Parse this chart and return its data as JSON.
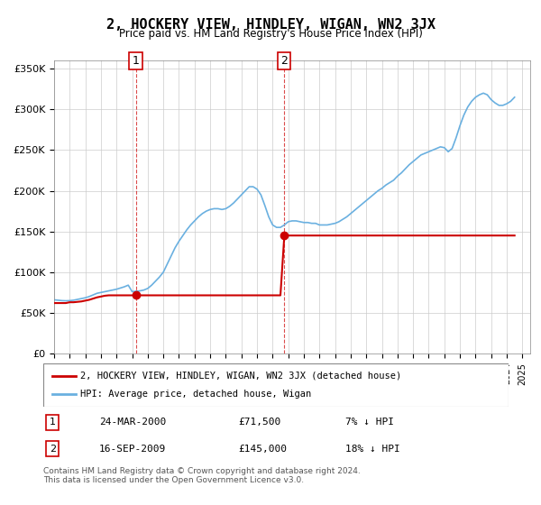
{
  "title": "2, HOCKERY VIEW, HINDLEY, WIGAN, WN2 3JX",
  "subtitle": "Price paid vs. HM Land Registry's House Price Index (HPI)",
  "ylabel_ticks": [
    "£0",
    "£50K",
    "£100K",
    "£150K",
    "£200K",
    "£250K",
    "£300K",
    "£350K"
  ],
  "ytick_vals": [
    0,
    50000,
    100000,
    150000,
    200000,
    250000,
    300000,
    350000
  ],
  "ylim": [
    0,
    360000
  ],
  "xlim_start": 1995.0,
  "xlim_end": 2025.5,
  "hpi_color": "#6ab0e0",
  "price_color": "#cc0000",
  "marker_color": "#cc0000",
  "transaction1": {
    "date": 2000.23,
    "price": 71500,
    "label": "1"
  },
  "transaction2": {
    "date": 2009.71,
    "price": 145000,
    "label": "2"
  },
  "legend_line1": "2, HOCKERY VIEW, HINDLEY, WIGAN, WN2 3JX (detached house)",
  "legend_line2": "HPI: Average price, detached house, Wigan",
  "table_row1": {
    "num": "1",
    "date": "24-MAR-2000",
    "price": "£71,500",
    "pct": "7% ↓ HPI"
  },
  "table_row2": {
    "num": "2",
    "date": "16-SEP-2009",
    "price": "£145,000",
    "pct": "18% ↓ HPI"
  },
  "footer": "Contains HM Land Registry data © Crown copyright and database right 2024.\nThis data is licensed under the Open Government Licence v3.0.",
  "hpi_data": {
    "years": [
      1995.0,
      1995.25,
      1995.5,
      1995.75,
      1996.0,
      1996.25,
      1996.5,
      1996.75,
      1997.0,
      1997.25,
      1997.5,
      1997.75,
      1998.0,
      1998.25,
      1998.5,
      1998.75,
      1999.0,
      1999.25,
      1999.5,
      1999.75,
      2000.0,
      2000.25,
      2000.5,
      2000.75,
      2001.0,
      2001.25,
      2001.5,
      2001.75,
      2002.0,
      2002.25,
      2002.5,
      2002.75,
      2003.0,
      2003.25,
      2003.5,
      2003.75,
      2004.0,
      2004.25,
      2004.5,
      2004.75,
      2005.0,
      2005.25,
      2005.5,
      2005.75,
      2006.0,
      2006.25,
      2006.5,
      2006.75,
      2007.0,
      2007.25,
      2007.5,
      2007.75,
      2008.0,
      2008.25,
      2008.5,
      2008.75,
      2009.0,
      2009.25,
      2009.5,
      2009.75,
      2010.0,
      2010.25,
      2010.5,
      2010.75,
      2011.0,
      2011.25,
      2011.5,
      2011.75,
      2012.0,
      2012.25,
      2012.5,
      2012.75,
      2013.0,
      2013.25,
      2013.5,
      2013.75,
      2014.0,
      2014.25,
      2014.5,
      2014.75,
      2015.0,
      2015.25,
      2015.5,
      2015.75,
      2016.0,
      2016.25,
      2016.5,
      2016.75,
      2017.0,
      2017.25,
      2017.5,
      2017.75,
      2018.0,
      2018.25,
      2018.5,
      2018.75,
      2019.0,
      2019.25,
      2019.5,
      2019.75,
      2020.0,
      2020.25,
      2020.5,
      2020.75,
      2021.0,
      2021.25,
      2021.5,
      2021.75,
      2022.0,
      2022.25,
      2022.5,
      2022.75,
      2023.0,
      2023.25,
      2023.5,
      2023.75,
      2024.0,
      2024.25,
      2024.5
    ],
    "values": [
      66000,
      65500,
      65000,
      64800,
      65000,
      65500,
      66500,
      67500,
      68500,
      70000,
      72000,
      74000,
      75000,
      76000,
      77000,
      78000,
      79000,
      80500,
      82000,
      84000,
      76000,
      76500,
      77000,
      78000,
      80000,
      84000,
      89000,
      94000,
      100000,
      110000,
      120000,
      130000,
      138000,
      145000,
      152000,
      158000,
      163000,
      168000,
      172000,
      175000,
      177000,
      178000,
      178000,
      177000,
      178000,
      181000,
      185000,
      190000,
      195000,
      200000,
      205000,
      205000,
      202000,
      195000,
      182000,
      168000,
      158000,
      155000,
      155000,
      158000,
      162000,
      163000,
      163000,
      162000,
      161000,
      161000,
      160000,
      160000,
      158000,
      158000,
      158000,
      159000,
      160000,
      162000,
      165000,
      168000,
      172000,
      176000,
      180000,
      184000,
      188000,
      192000,
      196000,
      200000,
      203000,
      207000,
      210000,
      213000,
      218000,
      222000,
      227000,
      232000,
      236000,
      240000,
      244000,
      246000,
      248000,
      250000,
      252000,
      254000,
      253000,
      248000,
      252000,
      265000,
      280000,
      293000,
      303000,
      310000,
      315000,
      318000,
      320000,
      318000,
      312000,
      308000,
      305000,
      305000,
      307000,
      310000,
      315000
    ]
  },
  "price_data": {
    "years": [
      1995.0,
      1995.25,
      1995.5,
      1995.75,
      1996.0,
      1996.25,
      1996.5,
      1996.75,
      1997.0,
      1997.25,
      1997.5,
      1997.75,
      1998.0,
      1998.25,
      1998.5,
      1998.75,
      1999.0,
      1999.25,
      1999.5,
      1999.75,
      2000.0,
      2000.25,
      2000.5,
      2000.75,
      2001.0,
      2001.25,
      2001.5,
      2001.75,
      2002.0,
      2002.25,
      2002.5,
      2002.75,
      2003.0,
      2003.25,
      2003.5,
      2003.75,
      2004.0,
      2004.25,
      2004.5,
      2004.75,
      2005.0,
      2005.25,
      2005.5,
      2005.75,
      2006.0,
      2006.25,
      2006.5,
      2006.75,
      2007.0,
      2007.25,
      2007.5,
      2007.75,
      2008.0,
      2008.25,
      2008.5,
      2008.75,
      2009.0,
      2009.25,
      2009.5,
      2009.75,
      2010.0,
      2010.25,
      2010.5,
      2010.75,
      2011.0,
      2011.25,
      2011.5,
      2011.75,
      2012.0,
      2012.25,
      2012.5,
      2012.75,
      2013.0,
      2013.25,
      2013.5,
      2013.75,
      2014.0,
      2014.25,
      2014.5,
      2014.75,
      2015.0,
      2015.25,
      2015.5,
      2015.75,
      2016.0,
      2016.25,
      2016.5,
      2016.75,
      2017.0,
      2017.25,
      2017.5,
      2017.75,
      2018.0,
      2018.25,
      2018.5,
      2018.75,
      2019.0,
      2019.25,
      2019.5,
      2019.75,
      2020.0,
      2020.25,
      2020.5,
      2020.75,
      2021.0,
      2021.25,
      2021.5,
      2021.75,
      2022.0,
      2022.25,
      2022.5,
      2022.75,
      2023.0,
      2023.25,
      2023.5,
      2023.75,
      2024.0,
      2024.25,
      2024.5
    ],
    "values": [
      62000,
      62000,
      62000,
      62000,
      63000,
      63000,
      63500,
      64000,
      65000,
      66000,
      67500,
      69000,
      70000,
      71000,
      71500,
      71500,
      71500,
      71500,
      71500,
      71500,
      71500,
      71500,
      71500,
      71500,
      71500,
      71500,
      71500,
      71500,
      71500,
      71500,
      71500,
      71500,
      71500,
      71500,
      71500,
      71500,
      71500,
      71500,
      71500,
      71500,
      71500,
      71500,
      71500,
      71500,
      71500,
      71500,
      71500,
      71500,
      71500,
      71500,
      71500,
      71500,
      71500,
      71500,
      71500,
      71500,
      71500,
      71500,
      71500,
      145000,
      145000,
      145000,
      145000,
      145000,
      145000,
      145000,
      145000,
      145000,
      145000,
      145000,
      145000,
      145000,
      145000,
      145000,
      145000,
      145000,
      145000,
      145000,
      145000,
      145000,
      145000,
      145000,
      145000,
      145000,
      145000,
      145000,
      145000,
      145000,
      145000,
      145000,
      145000,
      145000,
      145000,
      145000,
      145000,
      145000,
      145000,
      145000,
      145000,
      145000,
      145000,
      145000,
      145000,
      145000,
      145000,
      145000,
      145000,
      145000,
      145000,
      145000,
      145000,
      145000,
      145000,
      145000,
      145000,
      145000,
      145000,
      145000,
      145000
    ]
  }
}
